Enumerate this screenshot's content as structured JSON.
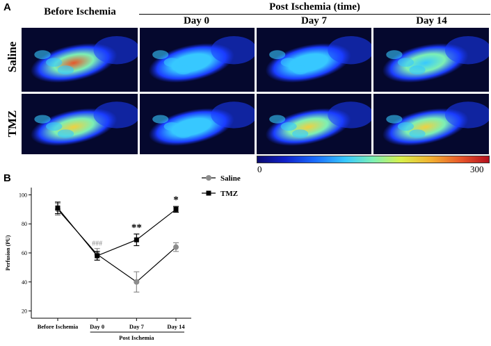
{
  "panel_a": {
    "label": "A",
    "col_before": "Before Ischemia",
    "col_post_group": "Post Ischemia (time)",
    "col_day0": "Day 0",
    "col_day7": "Day 7",
    "col_day14": "Day 14",
    "row_saline": "Saline",
    "row_tmz": "TMZ",
    "colorbar_min": "0",
    "colorbar_max": "300",
    "colors": {
      "background": "#05082e",
      "low": "#1a3cff",
      "mid": "#37c8ff",
      "high": "#e8562a"
    }
  },
  "panel_b": {
    "label": "B",
    "bracket_label": "Post Ischemia"
  },
  "chart_data": {
    "type": "line",
    "ylabel": "Perfusion (PU)",
    "xlabel": "",
    "categories": [
      "Before Ischemia",
      "Day 0",
      "Day 7",
      "Day 14"
    ],
    "yticks": [
      20,
      40,
      60,
      80,
      100
    ],
    "ylim": [
      15,
      105
    ],
    "series": [
      {
        "name": "Saline",
        "marker": "circle",
        "color": "#8c8c8c",
        "values": [
          90,
          59,
          40,
          64
        ],
        "errors": [
          4,
          4,
          7,
          3
        ]
      },
      {
        "name": "TMZ",
        "marker": "square",
        "color": "#000000",
        "values": [
          91,
          58,
          69,
          90
        ],
        "errors": [
          4,
          3,
          4,
          2
        ]
      }
    ],
    "annotations": [
      {
        "category": "Day 0",
        "text": "###",
        "color": "#8c8c8c"
      },
      {
        "category": "Day 7",
        "text": "**",
        "color": "#000000"
      },
      {
        "category": "Day 14",
        "text": "*",
        "color": "#000000"
      }
    ],
    "legend_position": "top-right"
  }
}
